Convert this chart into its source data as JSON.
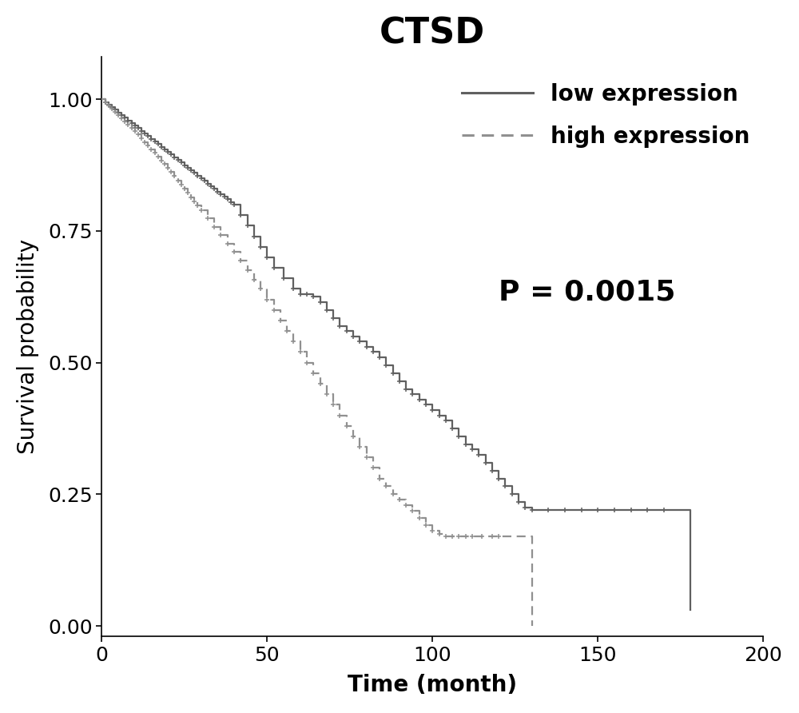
{
  "title": "CTSD",
  "xlabel": "Time (month)",
  "ylabel": "Survival probability",
  "pvalue_text": "P = 0.0015",
  "xlim": [
    0,
    200
  ],
  "ylim": [
    -0.02,
    1.08
  ],
  "xticks": [
    0,
    50,
    100,
    150,
    200
  ],
  "yticks": [
    0.0,
    0.25,
    0.5,
    0.75,
    1.0
  ],
  "low_color": "#606060",
  "high_color": "#909090",
  "title_fontsize": 32,
  "axis_label_fontsize": 20,
  "tick_fontsize": 18,
  "legend_fontsize": 20,
  "pvalue_fontsize": 26,
  "low_expression_times": [
    0,
    1,
    2,
    3,
    4,
    5,
    6,
    7,
    8,
    9,
    10,
    11,
    12,
    13,
    14,
    15,
    16,
    17,
    18,
    19,
    20,
    21,
    22,
    23,
    24,
    25,
    26,
    27,
    28,
    29,
    30,
    31,
    32,
    33,
    34,
    35,
    36,
    37,
    38,
    39,
    40,
    42,
    44,
    46,
    48,
    50,
    52,
    55,
    58,
    60,
    62,
    64,
    66,
    68,
    70,
    72,
    74,
    76,
    78,
    80,
    82,
    84,
    86,
    88,
    90,
    92,
    94,
    96,
    98,
    100,
    102,
    104,
    106,
    108,
    110,
    112,
    114,
    116,
    118,
    120,
    122,
    124,
    126,
    128,
    130,
    135,
    140,
    145,
    150,
    155,
    160,
    165,
    170,
    175,
    178
  ],
  "low_expression_surv": [
    1.0,
    0.995,
    0.99,
    0.985,
    0.98,
    0.975,
    0.97,
    0.965,
    0.96,
    0.955,
    0.95,
    0.945,
    0.94,
    0.935,
    0.93,
    0.925,
    0.92,
    0.915,
    0.91,
    0.905,
    0.9,
    0.895,
    0.89,
    0.885,
    0.88,
    0.875,
    0.87,
    0.865,
    0.86,
    0.855,
    0.85,
    0.845,
    0.84,
    0.835,
    0.83,
    0.825,
    0.82,
    0.815,
    0.81,
    0.805,
    0.8,
    0.78,
    0.76,
    0.74,
    0.72,
    0.7,
    0.68,
    0.66,
    0.64,
    0.63,
    0.63,
    0.625,
    0.615,
    0.6,
    0.585,
    0.57,
    0.56,
    0.55,
    0.54,
    0.53,
    0.52,
    0.51,
    0.495,
    0.48,
    0.465,
    0.45,
    0.44,
    0.43,
    0.42,
    0.41,
    0.4,
    0.39,
    0.375,
    0.36,
    0.345,
    0.335,
    0.325,
    0.31,
    0.295,
    0.28,
    0.265,
    0.25,
    0.235,
    0.225,
    0.22,
    0.22,
    0.22,
    0.22,
    0.22,
    0.22,
    0.22,
    0.22,
    0.22,
    0.22,
    0.03
  ],
  "high_expression_times": [
    0,
    1,
    2,
    3,
    4,
    5,
    6,
    7,
    8,
    9,
    10,
    11,
    12,
    13,
    14,
    15,
    16,
    17,
    18,
    19,
    20,
    21,
    22,
    23,
    24,
    25,
    26,
    27,
    28,
    29,
    30,
    32,
    34,
    36,
    38,
    40,
    42,
    44,
    46,
    48,
    50,
    52,
    54,
    56,
    58,
    60,
    62,
    64,
    66,
    68,
    70,
    72,
    74,
    76,
    78,
    80,
    82,
    84,
    86,
    88,
    90,
    92,
    94,
    96,
    98,
    100,
    102,
    104,
    106,
    108,
    110,
    112,
    115,
    118,
    120,
    125,
    130
  ],
  "high_expression_surv": [
    1.0,
    0.994,
    0.988,
    0.982,
    0.976,
    0.97,
    0.964,
    0.958,
    0.952,
    0.946,
    0.94,
    0.933,
    0.926,
    0.919,
    0.912,
    0.905,
    0.898,
    0.891,
    0.884,
    0.877,
    0.87,
    0.862,
    0.854,
    0.846,
    0.838,
    0.83,
    0.822,
    0.814,
    0.806,
    0.798,
    0.79,
    0.774,
    0.758,
    0.742,
    0.726,
    0.71,
    0.694,
    0.676,
    0.658,
    0.64,
    0.62,
    0.6,
    0.58,
    0.56,
    0.54,
    0.52,
    0.5,
    0.48,
    0.46,
    0.44,
    0.42,
    0.4,
    0.38,
    0.36,
    0.34,
    0.32,
    0.3,
    0.28,
    0.265,
    0.25,
    0.24,
    0.23,
    0.218,
    0.205,
    0.192,
    0.18,
    0.175,
    0.17,
    0.17,
    0.17,
    0.17,
    0.17,
    0.17,
    0.17,
    0.17,
    0.17,
    0.0
  ],
  "low_censor_times": [
    1,
    2,
    3,
    4,
    5,
    6,
    7,
    8,
    9,
    10,
    11,
    12,
    13,
    14,
    15,
    16,
    17,
    18,
    19,
    20,
    21,
    22,
    23,
    24,
    25,
    26,
    27,
    28,
    29,
    30,
    31,
    32,
    33,
    34,
    35,
    36,
    37,
    38,
    39,
    40,
    42,
    44,
    46,
    48,
    50,
    52,
    55,
    58,
    60,
    62,
    64,
    66,
    68,
    70,
    72,
    74,
    76,
    78,
    80,
    82,
    84,
    86,
    88,
    90,
    92,
    94,
    96,
    98,
    100,
    102,
    104,
    106,
    108,
    110,
    112,
    114,
    116,
    118,
    120,
    122,
    124,
    126,
    128,
    130,
    135,
    140,
    145,
    150,
    155,
    160,
    165,
    170
  ],
  "high_censor_times": [
    1,
    2,
    3,
    4,
    5,
    6,
    7,
    8,
    9,
    10,
    11,
    12,
    13,
    14,
    15,
    16,
    17,
    18,
    19,
    20,
    21,
    22,
    23,
    24,
    25,
    26,
    27,
    28,
    29,
    30,
    32,
    34,
    36,
    38,
    40,
    42,
    44,
    46,
    48,
    50,
    52,
    54,
    56,
    58,
    60,
    62,
    64,
    66,
    68,
    70,
    72,
    74,
    76,
    78,
    80,
    82,
    84,
    86,
    88,
    90,
    92,
    94,
    96,
    98,
    100,
    102,
    104,
    106,
    108,
    110,
    112,
    115,
    118,
    120
  ]
}
